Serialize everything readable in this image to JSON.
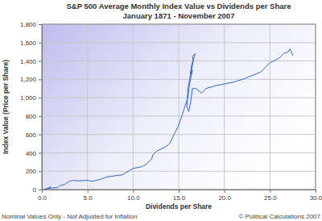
{
  "chart_data": {
    "type": "line",
    "title": "S&P 500 Average Monthly Index Value vs Dividends per Share",
    "subtitle": "January 1871 - November 2007",
    "x_label": "Dividends per Share",
    "y_label": "Index Value (Price per Share)",
    "annotations": [
      "Nominal Values Only - Not Adjusted for Inflation",
      "© Political Calculations 2007"
    ],
    "color": "#3366cc",
    "grid": true,
    "x": [
      0.26,
      0.45,
      0.6,
      0.97,
      0.5,
      0.7,
      1.1,
      1.5,
      1.8,
      2.0,
      2.5,
      3.0,
      3.2,
      3.4,
      4.0,
      5.0,
      5.5,
      6.4,
      6.8,
      7.0,
      8.0,
      8.8,
      10.0,
      11.0,
      11.5,
      12.0,
      12.2,
      12.6,
      13.5,
      14.0,
      14.5,
      15.0,
      15.5,
      16.0,
      16.2,
      16.5,
      16.3,
      16.6,
      16.5,
      16.8,
      16.4,
      16.2,
      16.0,
      15.9,
      16.1,
      16.3,
      16.5,
      16.9,
      17.5,
      18.0,
      19.0,
      20.0,
      21.0,
      22.0,
      23.0,
      24.0,
      25.0,
      26.0,
      26.5,
      27.0,
      27.2,
      27.5
    ],
    "values": [
      4.4,
      7,
      9,
      30,
      8,
      12,
      17,
      20,
      25,
      45,
      55,
      90,
      95,
      100,
      95,
      100,
      90,
      110,
      125,
      135,
      150,
      160,
      230,
      250,
      280,
      330,
      380,
      420,
      460,
      500,
      600,
      700,
      850,
      1000,
      1150,
      1300,
      1250,
      1400,
      1450,
      1480,
      1350,
      1200,
      1100,
      900,
      850,
      950,
      1100,
      1100,
      1050,
      1100,
      1130,
      1150,
      1170,
      1200,
      1240,
      1280,
      1380,
      1430,
      1480,
      1500,
      1530,
      1460
    ],
    "xlim": [
      0,
      30
    ],
    "xticks": [
      {
        "value": 0,
        "label": "0.0"
      },
      {
        "value": 5,
        "label": "5.0"
      },
      {
        "value": 10,
        "label": "10.0"
      },
      {
        "value": 15,
        "label": "15.0"
      },
      {
        "value": 20,
        "label": "20.0"
      },
      {
        "value": 25,
        "label": "25.0"
      },
      {
        "value": 30,
        "label": "30.0"
      }
    ],
    "ylim": [
      0,
      1800
    ],
    "yticks": [
      0,
      200,
      400,
      600,
      800,
      {
        "value": 1000,
        "label": "1,000"
      },
      {
        "value": 1200,
        "label": "1,200"
      },
      {
        "value": 1400,
        "label": "1,400"
      },
      {
        "value": 1600,
        "label": "1,600"
      },
      {
        "value": 1800,
        "label": "1,800"
      }
    ]
  }
}
